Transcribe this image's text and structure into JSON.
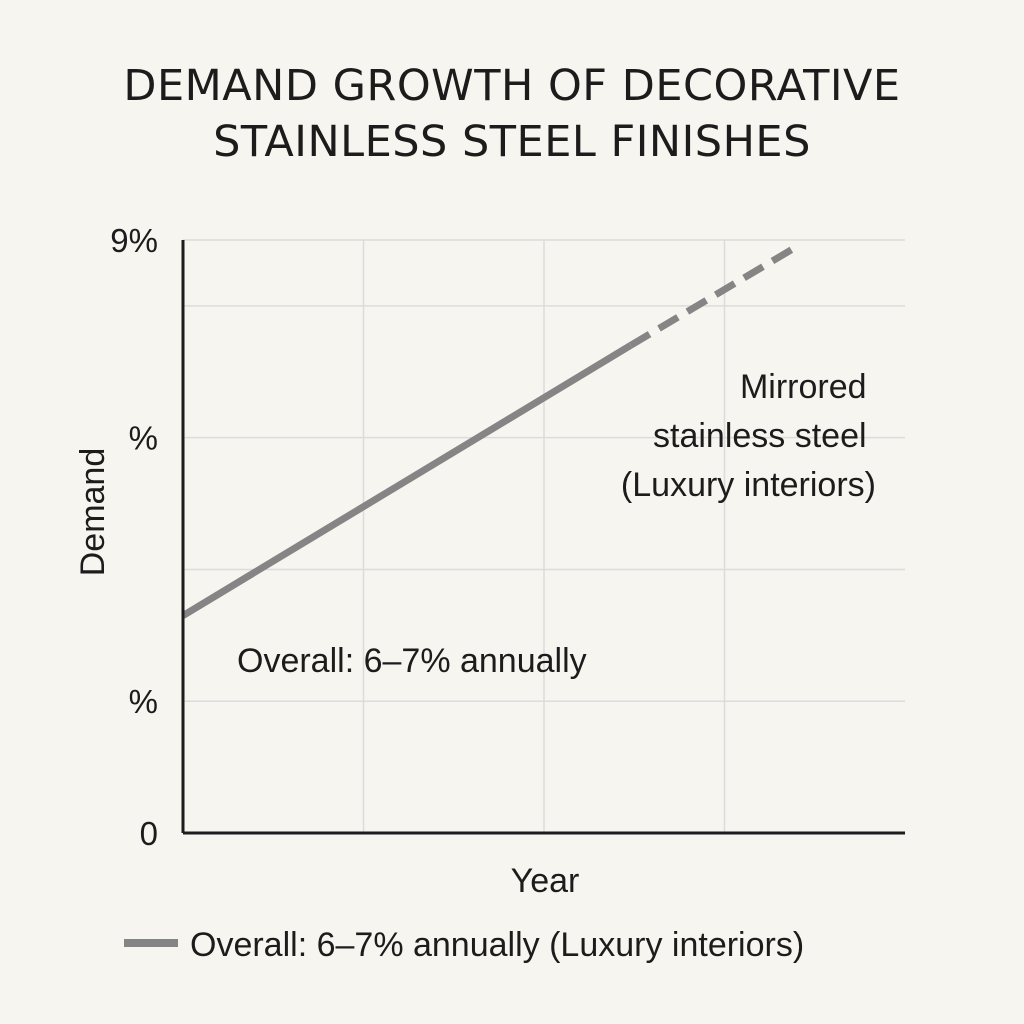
{
  "chart_data": {
    "type": "line",
    "title_lines": [
      "DEMAND GROWTH OF DECORATIVE",
      "STAINLESS STEEL FINISHES"
    ],
    "xlabel": "Year",
    "ylabel": "Demand",
    "ylim": [
      0,
      9
    ],
    "y_ticks": [
      {
        "value": 0,
        "label": "0"
      },
      {
        "value": 2,
        "label": "%"
      },
      {
        "value": 6,
        "label": "%"
      },
      {
        "value": 9,
        "label": "9%"
      }
    ],
    "y_gridlines": [
      2,
      4,
      6,
      8
    ],
    "x_gridlines": [
      1,
      2,
      3
    ],
    "xlim": [
      0,
      4
    ],
    "grid": true,
    "series": [
      {
        "name": "Overall: 6–7% annually (Luxury interiors)",
        "color": "#858585",
        "actual": {
          "x": [
            0,
            2.48
          ],
          "y": [
            3.3,
            7.4
          ]
        },
        "projected": {
          "x": [
            2.48,
            3.4
          ],
          "y": [
            7.4,
            8.9
          ]
        }
      }
    ],
    "annotations": [
      {
        "id": "mirrored",
        "lines": [
          "Mirrored",
          "stainless steel",
          "(Luxury interiors)"
        ]
      },
      {
        "id": "overall",
        "lines": [
          "Overall: 6–7% annually"
        ]
      }
    ],
    "legend": {
      "position": "bottom",
      "items": [
        {
          "label": "Overall: 6–7% annually (Luxury interiors)",
          "color": "#858585"
        }
      ]
    },
    "colors": {
      "axis": "#1c1c1c",
      "grid": "#dcdcdc",
      "line": "#858585",
      "background": "#f7f5f0"
    }
  }
}
